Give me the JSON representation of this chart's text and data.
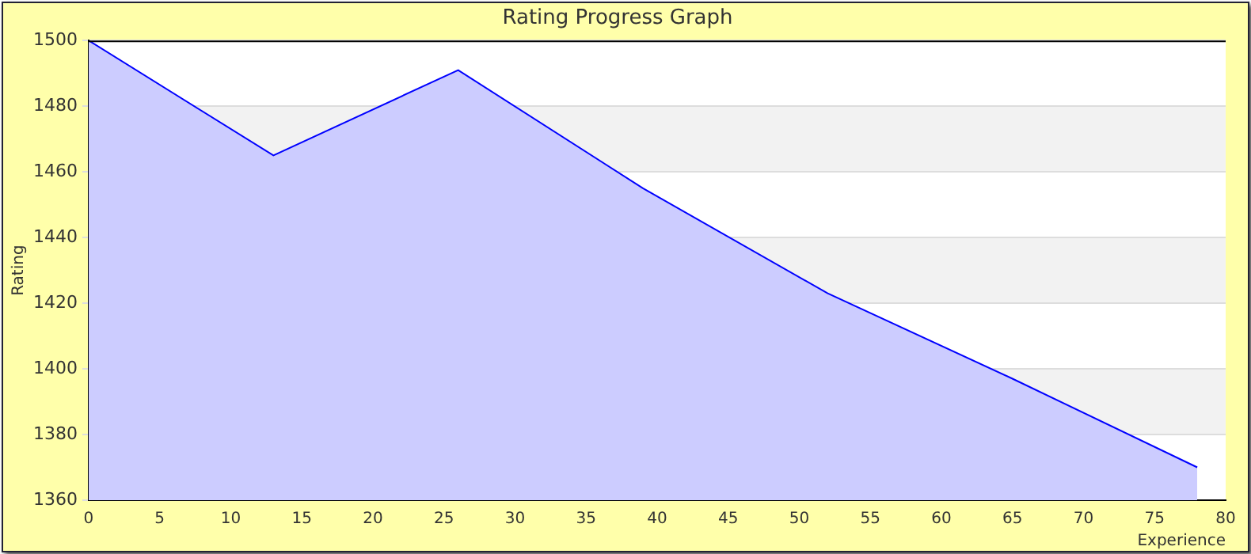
{
  "chart_data": {
    "type": "area",
    "title": "Rating Progress Graph",
    "xlabel": "Experience",
    "ylabel": "Rating",
    "x": [
      0,
      13,
      26,
      39,
      52,
      65,
      78
    ],
    "series": [
      {
        "color": "#0000ff",
        "values": [
          1500,
          1465,
          1491,
          1455,
          1423,
          1397,
          1370
        ]
      }
    ],
    "xlim": [
      0,
      80
    ],
    "xticks": [
      0,
      5,
      10,
      15,
      20,
      25,
      30,
      35,
      40,
      45,
      50,
      55,
      60,
      65,
      70,
      75,
      80
    ],
    "ylim": [
      1360,
      1500
    ],
    "yticks": [
      1360,
      1380,
      1400,
      1420,
      1440,
      1460,
      1480,
      1500
    ],
    "grid": "y",
    "legend": false,
    "marker": "none"
  }
}
